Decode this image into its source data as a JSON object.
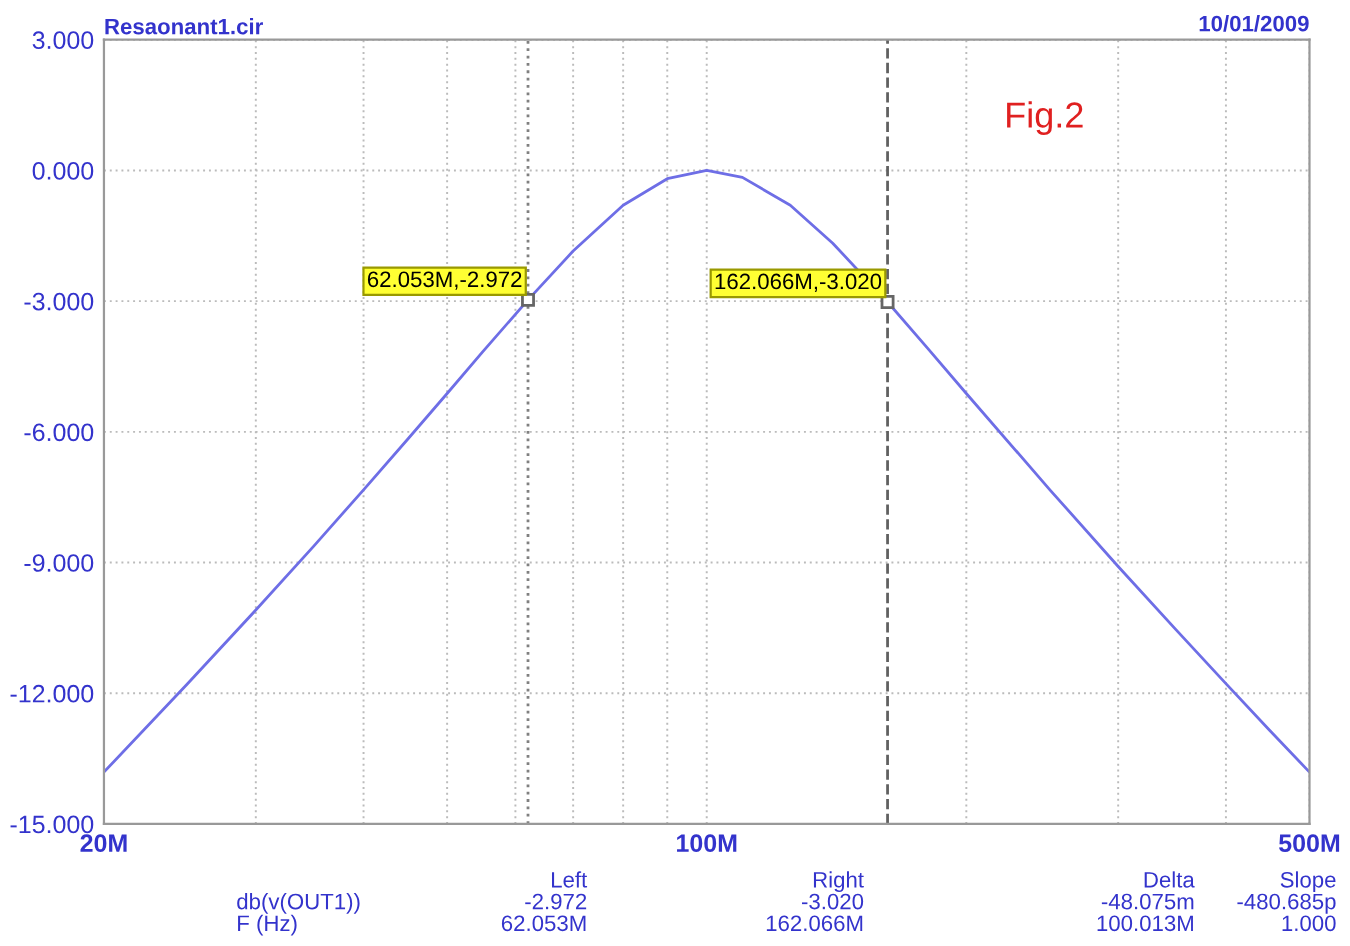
{
  "chart_data": {
    "type": "line",
    "title": "Resaonant1.cir",
    "log": "x",
    "grid": true,
    "line_style": "solid",
    "marker": "none",
    "x": [
      20000000,
      25000000,
      30000000,
      35000000,
      40000000,
      45000000,
      50000000,
      55000000,
      62053000,
      70000000,
      80000000,
      90000000,
      100000000,
      110000000,
      125000000,
      140000000,
      162066000,
      180000000,
      200000000,
      250000000,
      300000000,
      350000000,
      400000000,
      450000000,
      500000000
    ],
    "series": [
      {
        "color": "#6e6ee6",
        "values": [
          -13.81,
          -11.78,
          -10.09,
          -8.63,
          -7.33,
          -6.17,
          -5.12,
          -4.16,
          -2.97,
          -1.85,
          -0.8,
          -0.19,
          0,
          -0.16,
          -0.8,
          -1.67,
          -3.02,
          -4.06,
          -5.12,
          -7.33,
          -9.09,
          -10.54,
          -11.78,
          -12.86,
          -13.81
        ]
      }
    ],
    "xlim": [
      20000000,
      500000000
    ],
    "xticks": [
      {
        "value": 20000000,
        "label": "20M"
      },
      {
        "value": 30000000,
        "label": null
      },
      {
        "value": 40000000,
        "label": null
      },
      {
        "value": 50000000,
        "label": null
      },
      {
        "value": 60000000,
        "label": null
      },
      {
        "value": 70000000,
        "label": null
      },
      {
        "value": 80000000,
        "label": null
      },
      {
        "value": 90000000,
        "label": null
      },
      {
        "value": 100000000,
        "label": "100M"
      },
      {
        "value": 200000000,
        "label": null
      },
      {
        "value": 300000000,
        "label": null
      },
      {
        "value": 400000000,
        "label": null
      },
      {
        "value": 500000000,
        "label": "500M"
      }
    ],
    "ylim": [
      -15,
      3
    ],
    "yticks": [
      {
        "value": -15,
        "label": "-15.000"
      },
      {
        "value": -12,
        "label": "-12.000"
      },
      {
        "value": -9,
        "label": "-9.000"
      },
      {
        "value": -6,
        "label": "-6.000"
      },
      {
        "value": -3,
        "label": "-3.000"
      },
      {
        "value": 0,
        "label": "0.000"
      },
      {
        "value": 3,
        "label": "3.000"
      }
    ],
    "ref_lines": [
      {
        "axis": "x",
        "value": 62053000,
        "color": "#808080",
        "line_style": "dotted"
      },
      {
        "axis": "x",
        "value": 162066000,
        "color": "#606060",
        "line_style": "dashed"
      }
    ],
    "annotations": [
      {
        "text": "62.053M,-2.972",
        "x": 62053000,
        "y": -2.972
      },
      {
        "text": "162.066M,-3.020",
        "x": 162066000,
        "y": -3.02
      },
      "10/01/2009",
      "Fig.2",
      "Left",
      "Right",
      "Delta",
      "Slope",
      "db(v(OUT1))",
      "-2.972",
      "-3.020",
      "-48.075m",
      "-480.685p",
      "F (Hz)",
      "62.053M",
      "162.066M",
      "100.013M",
      "1.000"
    ]
  }
}
